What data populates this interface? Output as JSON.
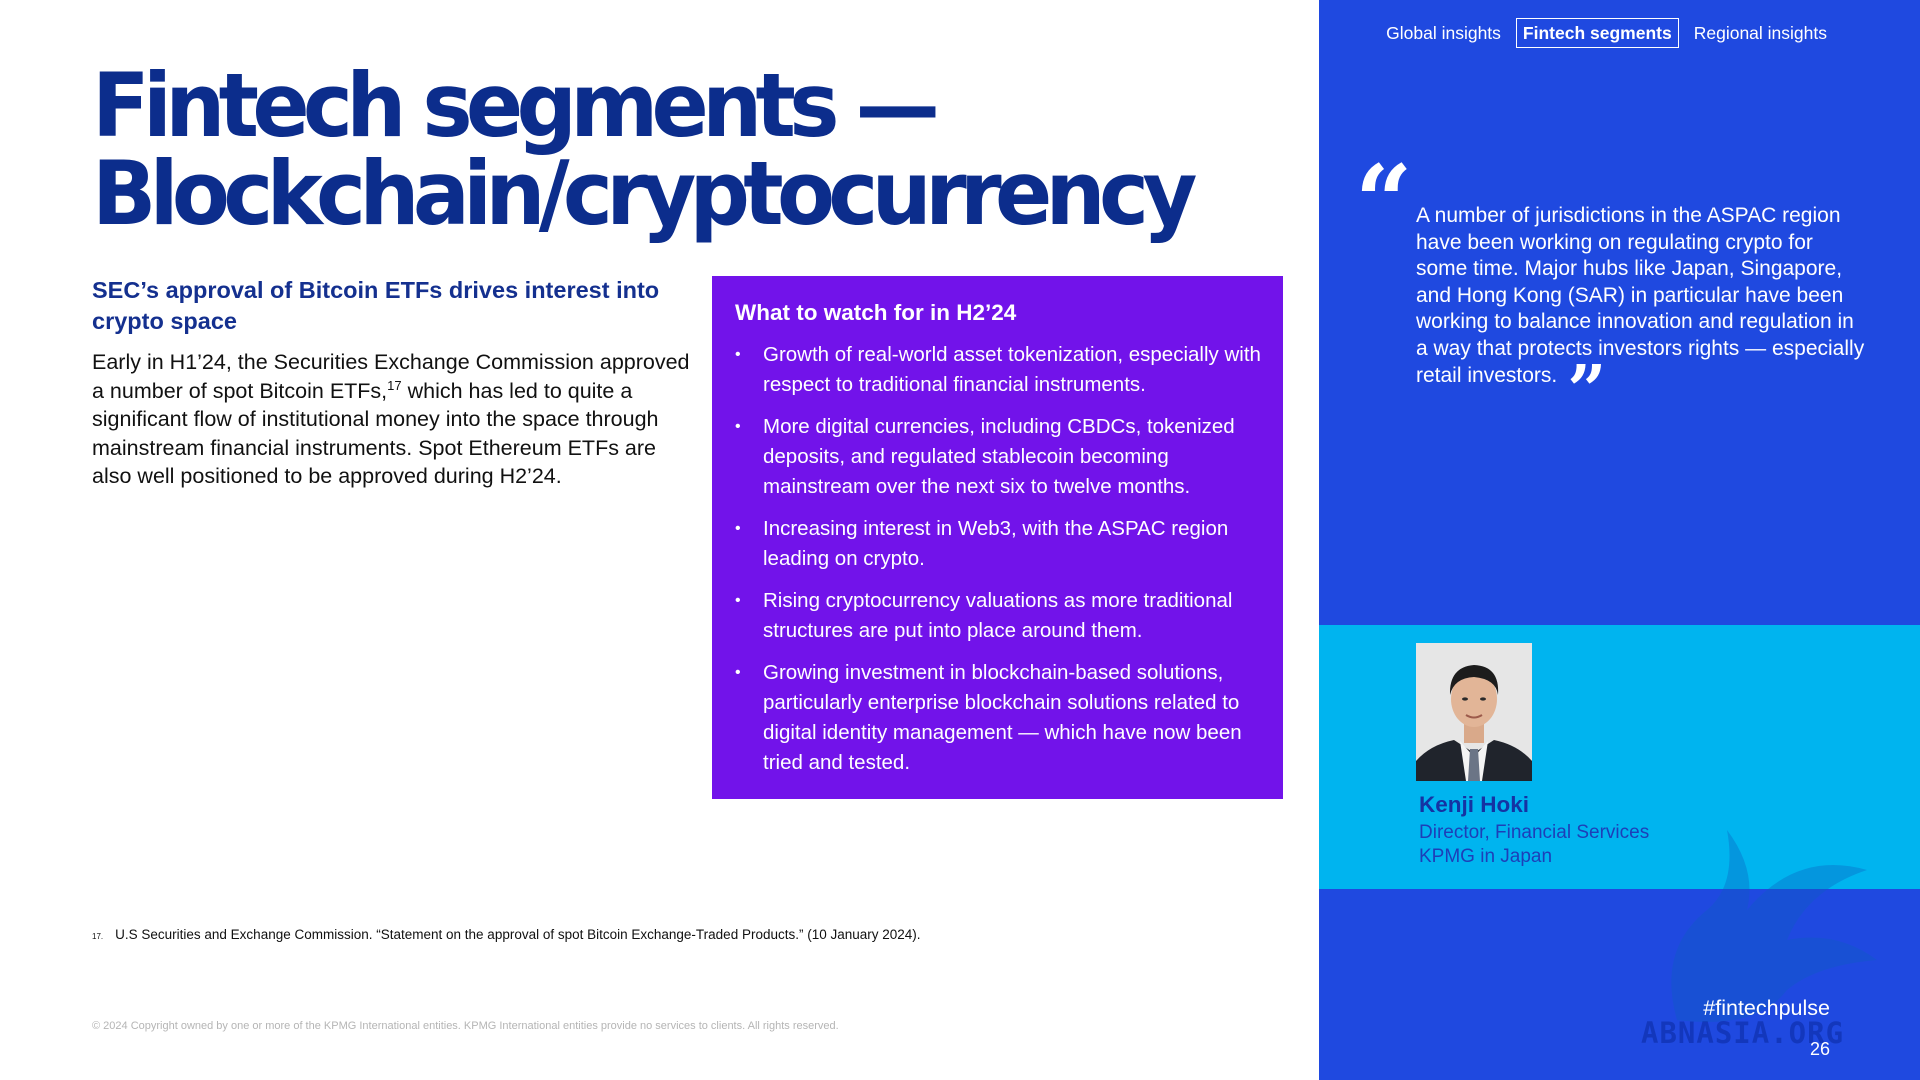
{
  "page": {
    "title_line1": "Fintech segments —",
    "title_line2": "Blockchain/cryptocurrency",
    "subheading": "SEC’s approval of Bitcoin ETFs drives interest into crypto space",
    "body_before_ref": "Early in H1’24, the Securities Exchange Commission approved a number of spot Bitcoin ETFs,",
    "body_ref": "17",
    "body_after_ref": " which has led to quite a significant flow of institutional money into the space through mainstream financial instruments. Spot Ethereum ETFs are also well positioned to be approved during H2’24."
  },
  "watch": {
    "title": "What to watch for in H2’24",
    "bullet_glyph": "•",
    "items": [
      "Growth of real-world asset tokenization, especially with respect to traditional financial instruments.",
      "More digital currencies, including CBDCs, tokenized deposits, and regulated stablecoin becoming mainstream over the next six to twelve months.",
      "Increasing interest in Web3, with the ASPAC region leading on crypto.",
      "Rising cryptocurrency valuations as more traditional structures are put into place around them.",
      "Growing investment in blockchain-based solutions, particularly enterprise blockchain solutions related to digital identity management — which have now been tried and tested."
    ]
  },
  "footnote": {
    "number": "17.",
    "text": "U.S Securities and Exchange Commission. “Statement on the approval of spot Bitcoin Exchange-Traded Products.” (10 January 2024)."
  },
  "copyright": "© 2024 Copyright owned by one or more of the KPMG International entities. KPMG International entities provide no services to clients. All rights reserved.",
  "nav": {
    "tabs": [
      {
        "label": "Global insights",
        "active": false
      },
      {
        "label": "Fintech segments",
        "active": true
      },
      {
        "label": "Regional insights",
        "active": false
      }
    ]
  },
  "quote": {
    "open_mark": "“",
    "close_mark": "”",
    "text": "A number of jurisdictions in the ASPAC region have been working on regulating crypto for some time. Major hubs like Japan, Singapore, and Hong Kong (SAR) in particular have been working to balance innovation and regulation in a way that protects investors rights — especially retail investors."
  },
  "person": {
    "name": "Kenji Hoki",
    "role": "Director, Financial Services",
    "org": "KPMG in Japan"
  },
  "hashtag": "#fintechpulse",
  "page_number": "26",
  "watermark": "ABNASIA.ORG",
  "colors": {
    "title_navy": "#0c2d8c",
    "purple_box": "#7213ea",
    "right_panel_blue": "#1f49e0",
    "profile_band_cyan": "#00b4ef"
  }
}
